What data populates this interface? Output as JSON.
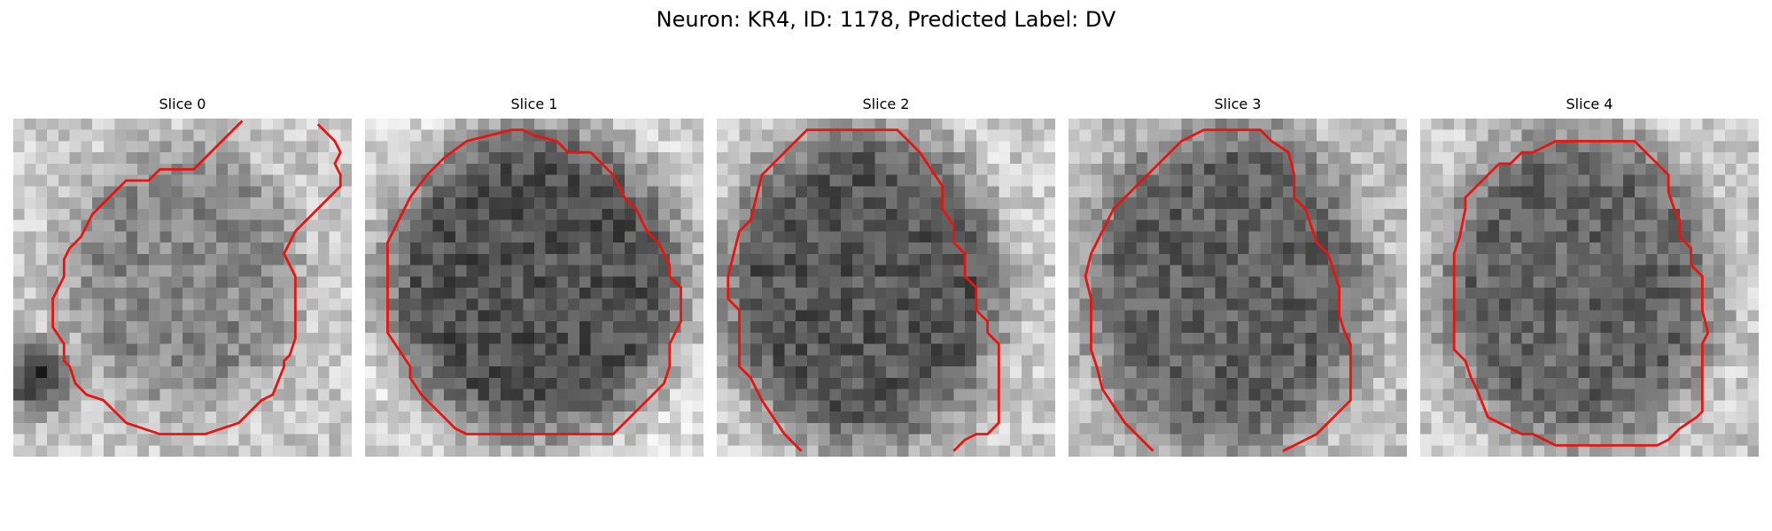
{
  "figure": {
    "title": "Neuron: KR4, ID: 1178, Predicted Label: DV",
    "contour_color": "#e8140f"
  },
  "panels": [
    {
      "label": "Slice 0"
    },
    {
      "label": "Slice 1"
    },
    {
      "label": "Slice 2"
    },
    {
      "label": "Slice 3"
    },
    {
      "label": "Slice 4"
    }
  ]
}
